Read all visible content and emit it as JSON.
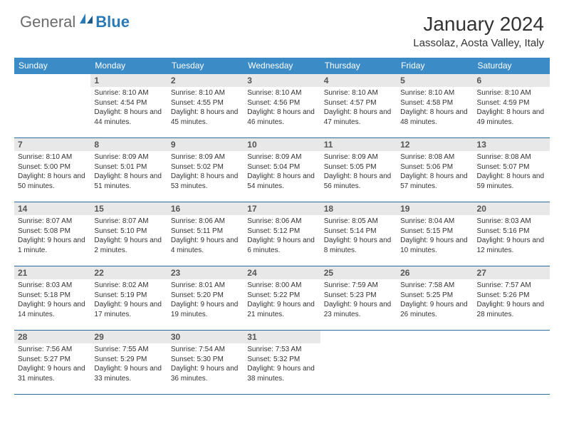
{
  "logo": {
    "general": "General",
    "blue": "Blue"
  },
  "title": "January 2024",
  "location": "Lassolaz, Aosta Valley, Italy",
  "colors": {
    "header_bg": "#3b8bc6",
    "header_text": "#ffffff",
    "daynum_bg": "#e8e8e8",
    "border": "#2a6a9c",
    "logo_gray": "#6b6b6b",
    "logo_blue": "#2a7ab8"
  },
  "weekdays": [
    "Sunday",
    "Monday",
    "Tuesday",
    "Wednesday",
    "Thursday",
    "Friday",
    "Saturday"
  ],
  "first_weekday_index": 1,
  "days": [
    {
      "n": 1,
      "sr": "8:10 AM",
      "ss": "4:54 PM",
      "dl": "8 hours and 44 minutes."
    },
    {
      "n": 2,
      "sr": "8:10 AM",
      "ss": "4:55 PM",
      "dl": "8 hours and 45 minutes."
    },
    {
      "n": 3,
      "sr": "8:10 AM",
      "ss": "4:56 PM",
      "dl": "8 hours and 46 minutes."
    },
    {
      "n": 4,
      "sr": "8:10 AM",
      "ss": "4:57 PM",
      "dl": "8 hours and 47 minutes."
    },
    {
      "n": 5,
      "sr": "8:10 AM",
      "ss": "4:58 PM",
      "dl": "8 hours and 48 minutes."
    },
    {
      "n": 6,
      "sr": "8:10 AM",
      "ss": "4:59 PM",
      "dl": "8 hours and 49 minutes."
    },
    {
      "n": 7,
      "sr": "8:10 AM",
      "ss": "5:00 PM",
      "dl": "8 hours and 50 minutes."
    },
    {
      "n": 8,
      "sr": "8:09 AM",
      "ss": "5:01 PM",
      "dl": "8 hours and 51 minutes."
    },
    {
      "n": 9,
      "sr": "8:09 AM",
      "ss": "5:02 PM",
      "dl": "8 hours and 53 minutes."
    },
    {
      "n": 10,
      "sr": "8:09 AM",
      "ss": "5:04 PM",
      "dl": "8 hours and 54 minutes."
    },
    {
      "n": 11,
      "sr": "8:09 AM",
      "ss": "5:05 PM",
      "dl": "8 hours and 56 minutes."
    },
    {
      "n": 12,
      "sr": "8:08 AM",
      "ss": "5:06 PM",
      "dl": "8 hours and 57 minutes."
    },
    {
      "n": 13,
      "sr": "8:08 AM",
      "ss": "5:07 PM",
      "dl": "8 hours and 59 minutes."
    },
    {
      "n": 14,
      "sr": "8:07 AM",
      "ss": "5:08 PM",
      "dl": "9 hours and 1 minute."
    },
    {
      "n": 15,
      "sr": "8:07 AM",
      "ss": "5:10 PM",
      "dl": "9 hours and 2 minutes."
    },
    {
      "n": 16,
      "sr": "8:06 AM",
      "ss": "5:11 PM",
      "dl": "9 hours and 4 minutes."
    },
    {
      "n": 17,
      "sr": "8:06 AM",
      "ss": "5:12 PM",
      "dl": "9 hours and 6 minutes."
    },
    {
      "n": 18,
      "sr": "8:05 AM",
      "ss": "5:14 PM",
      "dl": "9 hours and 8 minutes."
    },
    {
      "n": 19,
      "sr": "8:04 AM",
      "ss": "5:15 PM",
      "dl": "9 hours and 10 minutes."
    },
    {
      "n": 20,
      "sr": "8:03 AM",
      "ss": "5:16 PM",
      "dl": "9 hours and 12 minutes."
    },
    {
      "n": 21,
      "sr": "8:03 AM",
      "ss": "5:18 PM",
      "dl": "9 hours and 14 minutes."
    },
    {
      "n": 22,
      "sr": "8:02 AM",
      "ss": "5:19 PM",
      "dl": "9 hours and 17 minutes."
    },
    {
      "n": 23,
      "sr": "8:01 AM",
      "ss": "5:20 PM",
      "dl": "9 hours and 19 minutes."
    },
    {
      "n": 24,
      "sr": "8:00 AM",
      "ss": "5:22 PM",
      "dl": "9 hours and 21 minutes."
    },
    {
      "n": 25,
      "sr": "7:59 AM",
      "ss": "5:23 PM",
      "dl": "9 hours and 23 minutes."
    },
    {
      "n": 26,
      "sr": "7:58 AM",
      "ss": "5:25 PM",
      "dl": "9 hours and 26 minutes."
    },
    {
      "n": 27,
      "sr": "7:57 AM",
      "ss": "5:26 PM",
      "dl": "9 hours and 28 minutes."
    },
    {
      "n": 28,
      "sr": "7:56 AM",
      "ss": "5:27 PM",
      "dl": "9 hours and 31 minutes."
    },
    {
      "n": 29,
      "sr": "7:55 AM",
      "ss": "5:29 PM",
      "dl": "9 hours and 33 minutes."
    },
    {
      "n": 30,
      "sr": "7:54 AM",
      "ss": "5:30 PM",
      "dl": "9 hours and 36 minutes."
    },
    {
      "n": 31,
      "sr": "7:53 AM",
      "ss": "5:32 PM",
      "dl": "9 hours and 38 minutes."
    }
  ],
  "labels": {
    "sunrise": "Sunrise:",
    "sunset": "Sunset:",
    "daylight": "Daylight:"
  }
}
